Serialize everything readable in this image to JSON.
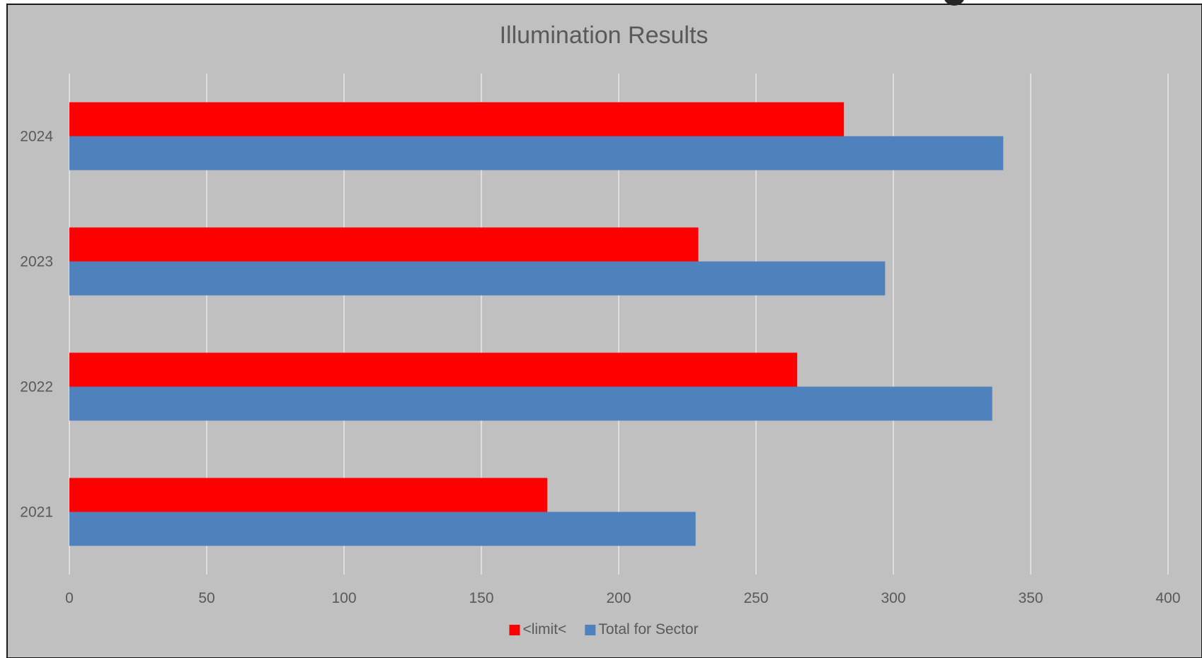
{
  "chart_data": {
    "type": "bar",
    "orientation": "horizontal",
    "title": "Illumination Results",
    "xlabel": "",
    "ylabel": "",
    "categories": [
      "2021",
      "2022",
      "2023",
      "2024"
    ],
    "series": [
      {
        "name": "<limit<",
        "color": "#ff0000",
        "values": [
          174,
          265,
          229,
          282
        ]
      },
      {
        "name": "Total for Sector",
        "color": "#4f81bd",
        "values": [
          228,
          336,
          297,
          340
        ]
      }
    ],
    "xlim": [
      0,
      400
    ],
    "x_ticks": [
      0,
      50,
      100,
      150,
      200,
      250,
      300,
      350,
      400
    ],
    "grid": "vertical",
    "legend_position": "bottom",
    "colors": {
      "plot_background": "#c0c0c0",
      "gridline": "#e8e8e8",
      "text": "#595959",
      "title": "#595959",
      "border": "#1a1a1a"
    }
  }
}
